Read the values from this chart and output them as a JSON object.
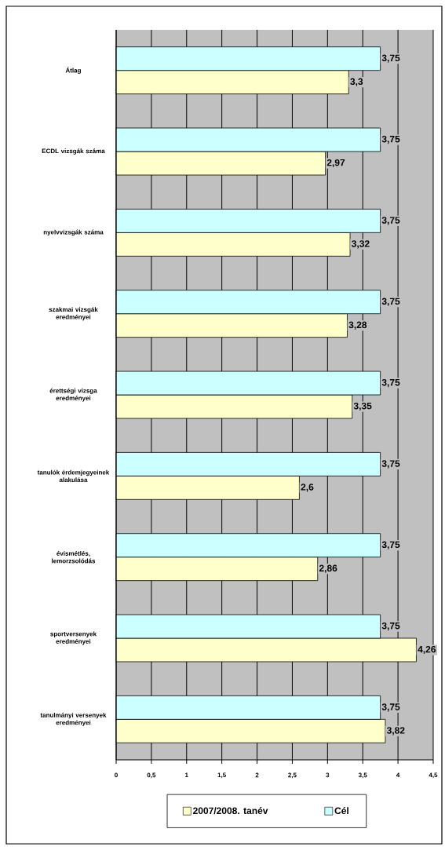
{
  "chart_data": {
    "type": "bar",
    "orientation": "horizontal",
    "categories": [
      "Átlag",
      "ECDL vizsgák száma",
      "nyelvvizsgák száma",
      "szakmai vizsgák eredményei",
      "érettségi vizsga eredményei",
      "tanulók érdemjegyeinek alakulása",
      "évismétlés, lemorzsolódás",
      "sportversenyek eredményei",
      "tanulmányi versenyek eredményei"
    ],
    "series": [
      {
        "name": "2007/2008. tanév",
        "color": "#ffffcc",
        "values": [
          3.3,
          2.97,
          3.32,
          3.28,
          3.35,
          2.6,
          2.86,
          4.26,
          3.82
        ],
        "value_labels": [
          "3,3",
          "2,97",
          "3,32",
          "3,28",
          "3,35",
          "2,6",
          "2,86",
          "4,26",
          "3,82"
        ]
      },
      {
        "name": "Cél",
        "color": "#ccffff",
        "values": [
          3.75,
          3.75,
          3.75,
          3.75,
          3.75,
          3.75,
          3.75,
          3.75,
          3.75
        ],
        "value_labels": [
          "3,75",
          "3,75",
          "3,75",
          "3,75",
          "3,75",
          "3,75",
          "3,75",
          "3,75",
          "3,75"
        ]
      }
    ],
    "xlim": [
      0,
      4.5
    ],
    "xticks": [
      0,
      {
        "value": 0.5,
        "label": "0,5"
      },
      1,
      {
        "value": 1.5,
        "label": "1,5"
      },
      2,
      {
        "value": 2.5,
        "label": "2,5"
      },
      3,
      {
        "value": 3.5,
        "label": "3,5"
      },
      4,
      {
        "value": 4.5,
        "label": "4,5"
      }
    ],
    "grid": "x",
    "legend": "bottom"
  }
}
